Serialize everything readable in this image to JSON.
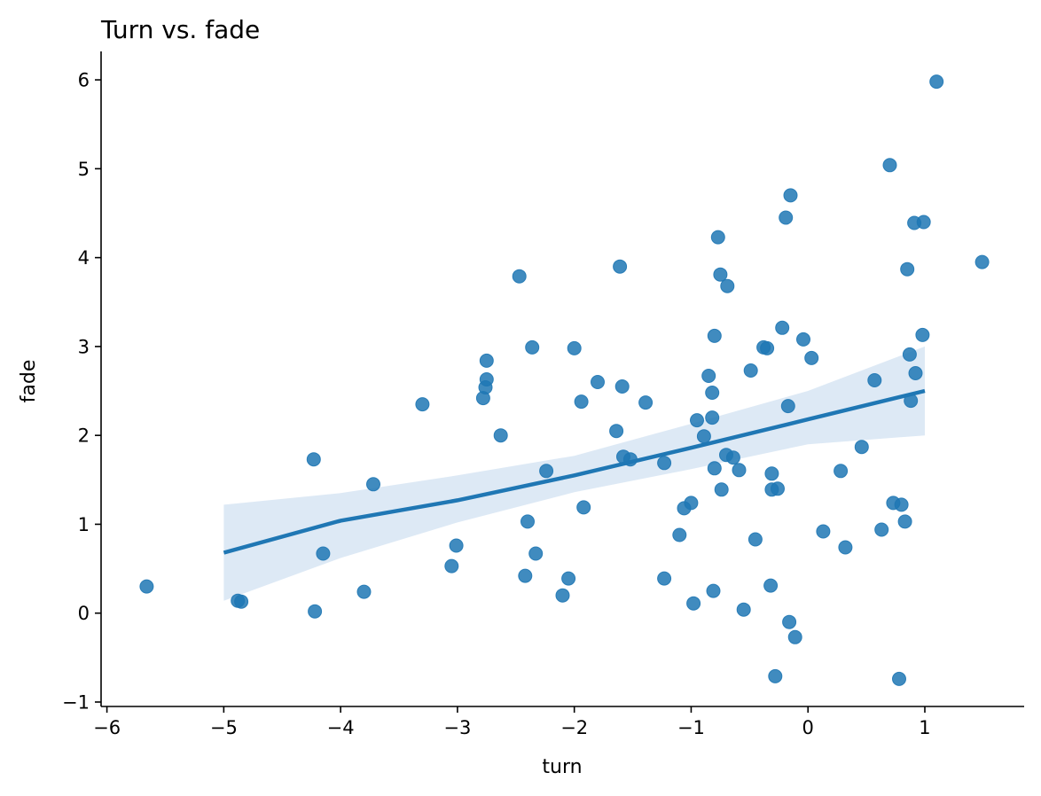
{
  "chart_data": {
    "type": "scatter",
    "title": "Turn vs. fade",
    "xlabel": "turn",
    "ylabel": "fade",
    "xlim": [
      -6.05,
      1.85
    ],
    "ylim": [
      -1.05,
      6.32
    ],
    "xticks": [
      {
        "value": -6,
        "label": "−6"
      },
      {
        "value": -5,
        "label": "−5"
      },
      {
        "value": -4,
        "label": "−4"
      },
      {
        "value": -3,
        "label": "−3"
      },
      {
        "value": -2,
        "label": "−2"
      },
      {
        "value": -1,
        "label": "−1"
      },
      {
        "value": 0,
        "label": "0"
      },
      {
        "value": 1,
        "label": "1"
      }
    ],
    "yticks": [
      {
        "value": -1,
        "label": "−1"
      },
      {
        "value": 0,
        "label": "0"
      },
      {
        "value": 1,
        "label": "1"
      },
      {
        "value": 2,
        "label": "2"
      },
      {
        "value": 3,
        "label": "3"
      },
      {
        "value": 4,
        "label": "4"
      },
      {
        "value": 5,
        "label": "5"
      },
      {
        "value": 6,
        "label": "6"
      }
    ],
    "grid": false,
    "point_color": "#1f77b4",
    "line_color": "#1f77b4",
    "band_color": "#c6dbef",
    "points": [
      [
        -5.66,
        0.3
      ],
      [
        -4.88,
        0.14
      ],
      [
        -4.85,
        0.13
      ],
      [
        -4.23,
        1.73
      ],
      [
        -4.22,
        0.02
      ],
      [
        -4.15,
        0.67
      ],
      [
        -3.8,
        0.24
      ],
      [
        -3.72,
        1.45
      ],
      [
        -3.3,
        2.35
      ],
      [
        -3.05,
        0.53
      ],
      [
        -3.01,
        0.76
      ],
      [
        -2.78,
        2.42
      ],
      [
        -2.76,
        2.54
      ],
      [
        -2.75,
        2.63
      ],
      [
        -2.75,
        2.84
      ],
      [
        -2.63,
        2.0
      ],
      [
        -2.47,
        3.79
      ],
      [
        -2.42,
        0.42
      ],
      [
        -2.4,
        1.03
      ],
      [
        -2.36,
        2.99
      ],
      [
        -2.33,
        0.67
      ],
      [
        -2.24,
        1.6
      ],
      [
        -2.1,
        0.2
      ],
      [
        -2.05,
        0.39
      ],
      [
        -2.0,
        2.98
      ],
      [
        -1.94,
        2.38
      ],
      [
        -1.92,
        1.19
      ],
      [
        -1.8,
        2.6
      ],
      [
        -1.64,
        2.05
      ],
      [
        -1.61,
        3.9
      ],
      [
        -1.59,
        2.55
      ],
      [
        -1.58,
        1.76
      ],
      [
        -1.52,
        1.73
      ],
      [
        -1.39,
        2.37
      ],
      [
        -1.23,
        1.69
      ],
      [
        -1.23,
        0.39
      ],
      [
        -1.1,
        0.88
      ],
      [
        -1.06,
        1.18
      ],
      [
        -1.0,
        1.24
      ],
      [
        -0.98,
        0.11
      ],
      [
        -0.95,
        2.17
      ],
      [
        -0.89,
        1.99
      ],
      [
        -0.85,
        2.67
      ],
      [
        -0.82,
        2.2
      ],
      [
        -0.82,
        2.48
      ],
      [
        -0.81,
        0.25
      ],
      [
        -0.8,
        3.12
      ],
      [
        -0.8,
        1.63
      ],
      [
        -0.77,
        4.23
      ],
      [
        -0.75,
        3.81
      ],
      [
        -0.74,
        1.39
      ],
      [
        -0.7,
        1.78
      ],
      [
        -0.69,
        3.68
      ],
      [
        -0.64,
        1.75
      ],
      [
        -0.59,
        1.61
      ],
      [
        -0.55,
        0.04
      ],
      [
        -0.49,
        2.73
      ],
      [
        -0.45,
        0.83
      ],
      [
        -0.38,
        2.99
      ],
      [
        -0.35,
        2.98
      ],
      [
        -0.32,
        0.31
      ],
      [
        -0.31,
        1.57
      ],
      [
        -0.31,
        1.39
      ],
      [
        -0.28,
        -0.71
      ],
      [
        -0.26,
        1.4
      ],
      [
        -0.22,
        3.21
      ],
      [
        -0.19,
        4.45
      ],
      [
        -0.17,
        2.33
      ],
      [
        -0.16,
        -0.1
      ],
      [
        -0.15,
        4.7
      ],
      [
        -0.11,
        -0.27
      ],
      [
        -0.04,
        3.08
      ],
      [
        0.03,
        2.87
      ],
      [
        0.13,
        0.92
      ],
      [
        0.28,
        1.6
      ],
      [
        0.32,
        0.74
      ],
      [
        0.46,
        1.87
      ],
      [
        0.57,
        2.62
      ],
      [
        0.63,
        0.94
      ],
      [
        0.7,
        5.04
      ],
      [
        0.73,
        1.24
      ],
      [
        0.78,
        -0.74
      ],
      [
        0.8,
        1.22
      ],
      [
        0.83,
        1.03
      ],
      [
        0.85,
        3.87
      ],
      [
        0.87,
        2.91
      ],
      [
        0.88,
        2.39
      ],
      [
        0.91,
        4.39
      ],
      [
        0.92,
        2.7
      ],
      [
        0.98,
        3.13
      ],
      [
        0.99,
        4.4
      ],
      [
        1.1,
        5.98
      ],
      [
        1.49,
        3.95
      ]
    ],
    "regression": {
      "x": [
        -5.0,
        -4.0,
        -3.0,
        -2.0,
        -1.0,
        0.0,
        1.0
      ],
      "y": [
        0.68,
        1.04,
        1.27,
        1.55,
        1.86,
        2.18,
        2.5
      ],
      "lower": [
        0.14,
        0.62,
        1.02,
        1.36,
        1.62,
        1.9,
        2.0
      ],
      "upper": [
        1.22,
        1.35,
        1.55,
        1.77,
        2.13,
        2.5,
        3.0
      ]
    }
  }
}
